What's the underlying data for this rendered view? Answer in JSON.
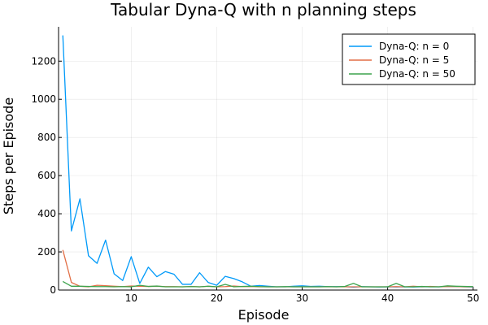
{
  "chart_data": {
    "type": "line",
    "title": "Tabular Dyna-Q with n planning steps",
    "xlabel": "Episode",
    "ylabel": "Steps per Episode",
    "xlim": [
      1.5,
      50.5
    ],
    "ylim": [
      0,
      1380
    ],
    "xticks": [
      10,
      20,
      30,
      40,
      50
    ],
    "yticks": [
      0,
      200,
      400,
      600,
      800,
      1000,
      1200
    ],
    "grid": true,
    "legend_position": "top-right",
    "x": [
      2,
      3,
      4,
      5,
      6,
      7,
      8,
      9,
      10,
      11,
      12,
      13,
      14,
      15,
      16,
      17,
      18,
      19,
      20,
      21,
      22,
      23,
      24,
      25,
      26,
      27,
      28,
      29,
      30,
      31,
      32,
      33,
      34,
      35,
      36,
      37,
      38,
      39,
      40,
      41,
      42,
      43,
      44,
      45,
      46,
      47,
      48,
      49,
      50
    ],
    "series": [
      {
        "name": "Dyna-Q: n = 0",
        "color": "#009af9",
        "values": [
          1335,
          310,
          478,
          180,
          140,
          262,
          85,
          50,
          175,
          35,
          120,
          70,
          97,
          83,
          30,
          30,
          91,
          40,
          25,
          72,
          60,
          43,
          20,
          24,
          20,
          17,
          17,
          20,
          22,
          19,
          20,
          18,
          18,
          18,
          15,
          18,
          17,
          16,
          17,
          16,
          17,
          16,
          17,
          17,
          17,
          18,
          18,
          17,
          16
        ]
      },
      {
        "name": "Dyna-Q: n = 5",
        "color": "#e26f46",
        "values": [
          210,
          40,
          20,
          17,
          25,
          23,
          20,
          18,
          21,
          20,
          19,
          20,
          18,
          18,
          17,
          19,
          17,
          20,
          17,
          18,
          21,
          18,
          19,
          17,
          17,
          17,
          17,
          17,
          17,
          17,
          17,
          17,
          17,
          17,
          17,
          17,
          17,
          17,
          17,
          18,
          17,
          20,
          17,
          19,
          17,
          18,
          18,
          17,
          17
        ]
      },
      {
        "name": "Dyna-Q: n = 50",
        "color": "#3da44d",
        "values": [
          45,
          20,
          20,
          19,
          18,
          18,
          17,
          18,
          17,
          25,
          19,
          21,
          17,
          17,
          17,
          18,
          17,
          20,
          17,
          30,
          17,
          19,
          20,
          18,
          17,
          17,
          18,
          17,
          17,
          17,
          17,
          18,
          17,
          19,
          35,
          17,
          17,
          17,
          17,
          35,
          17,
          17,
          19,
          17,
          17,
          22,
          20,
          19,
          18
        ]
      }
    ]
  }
}
